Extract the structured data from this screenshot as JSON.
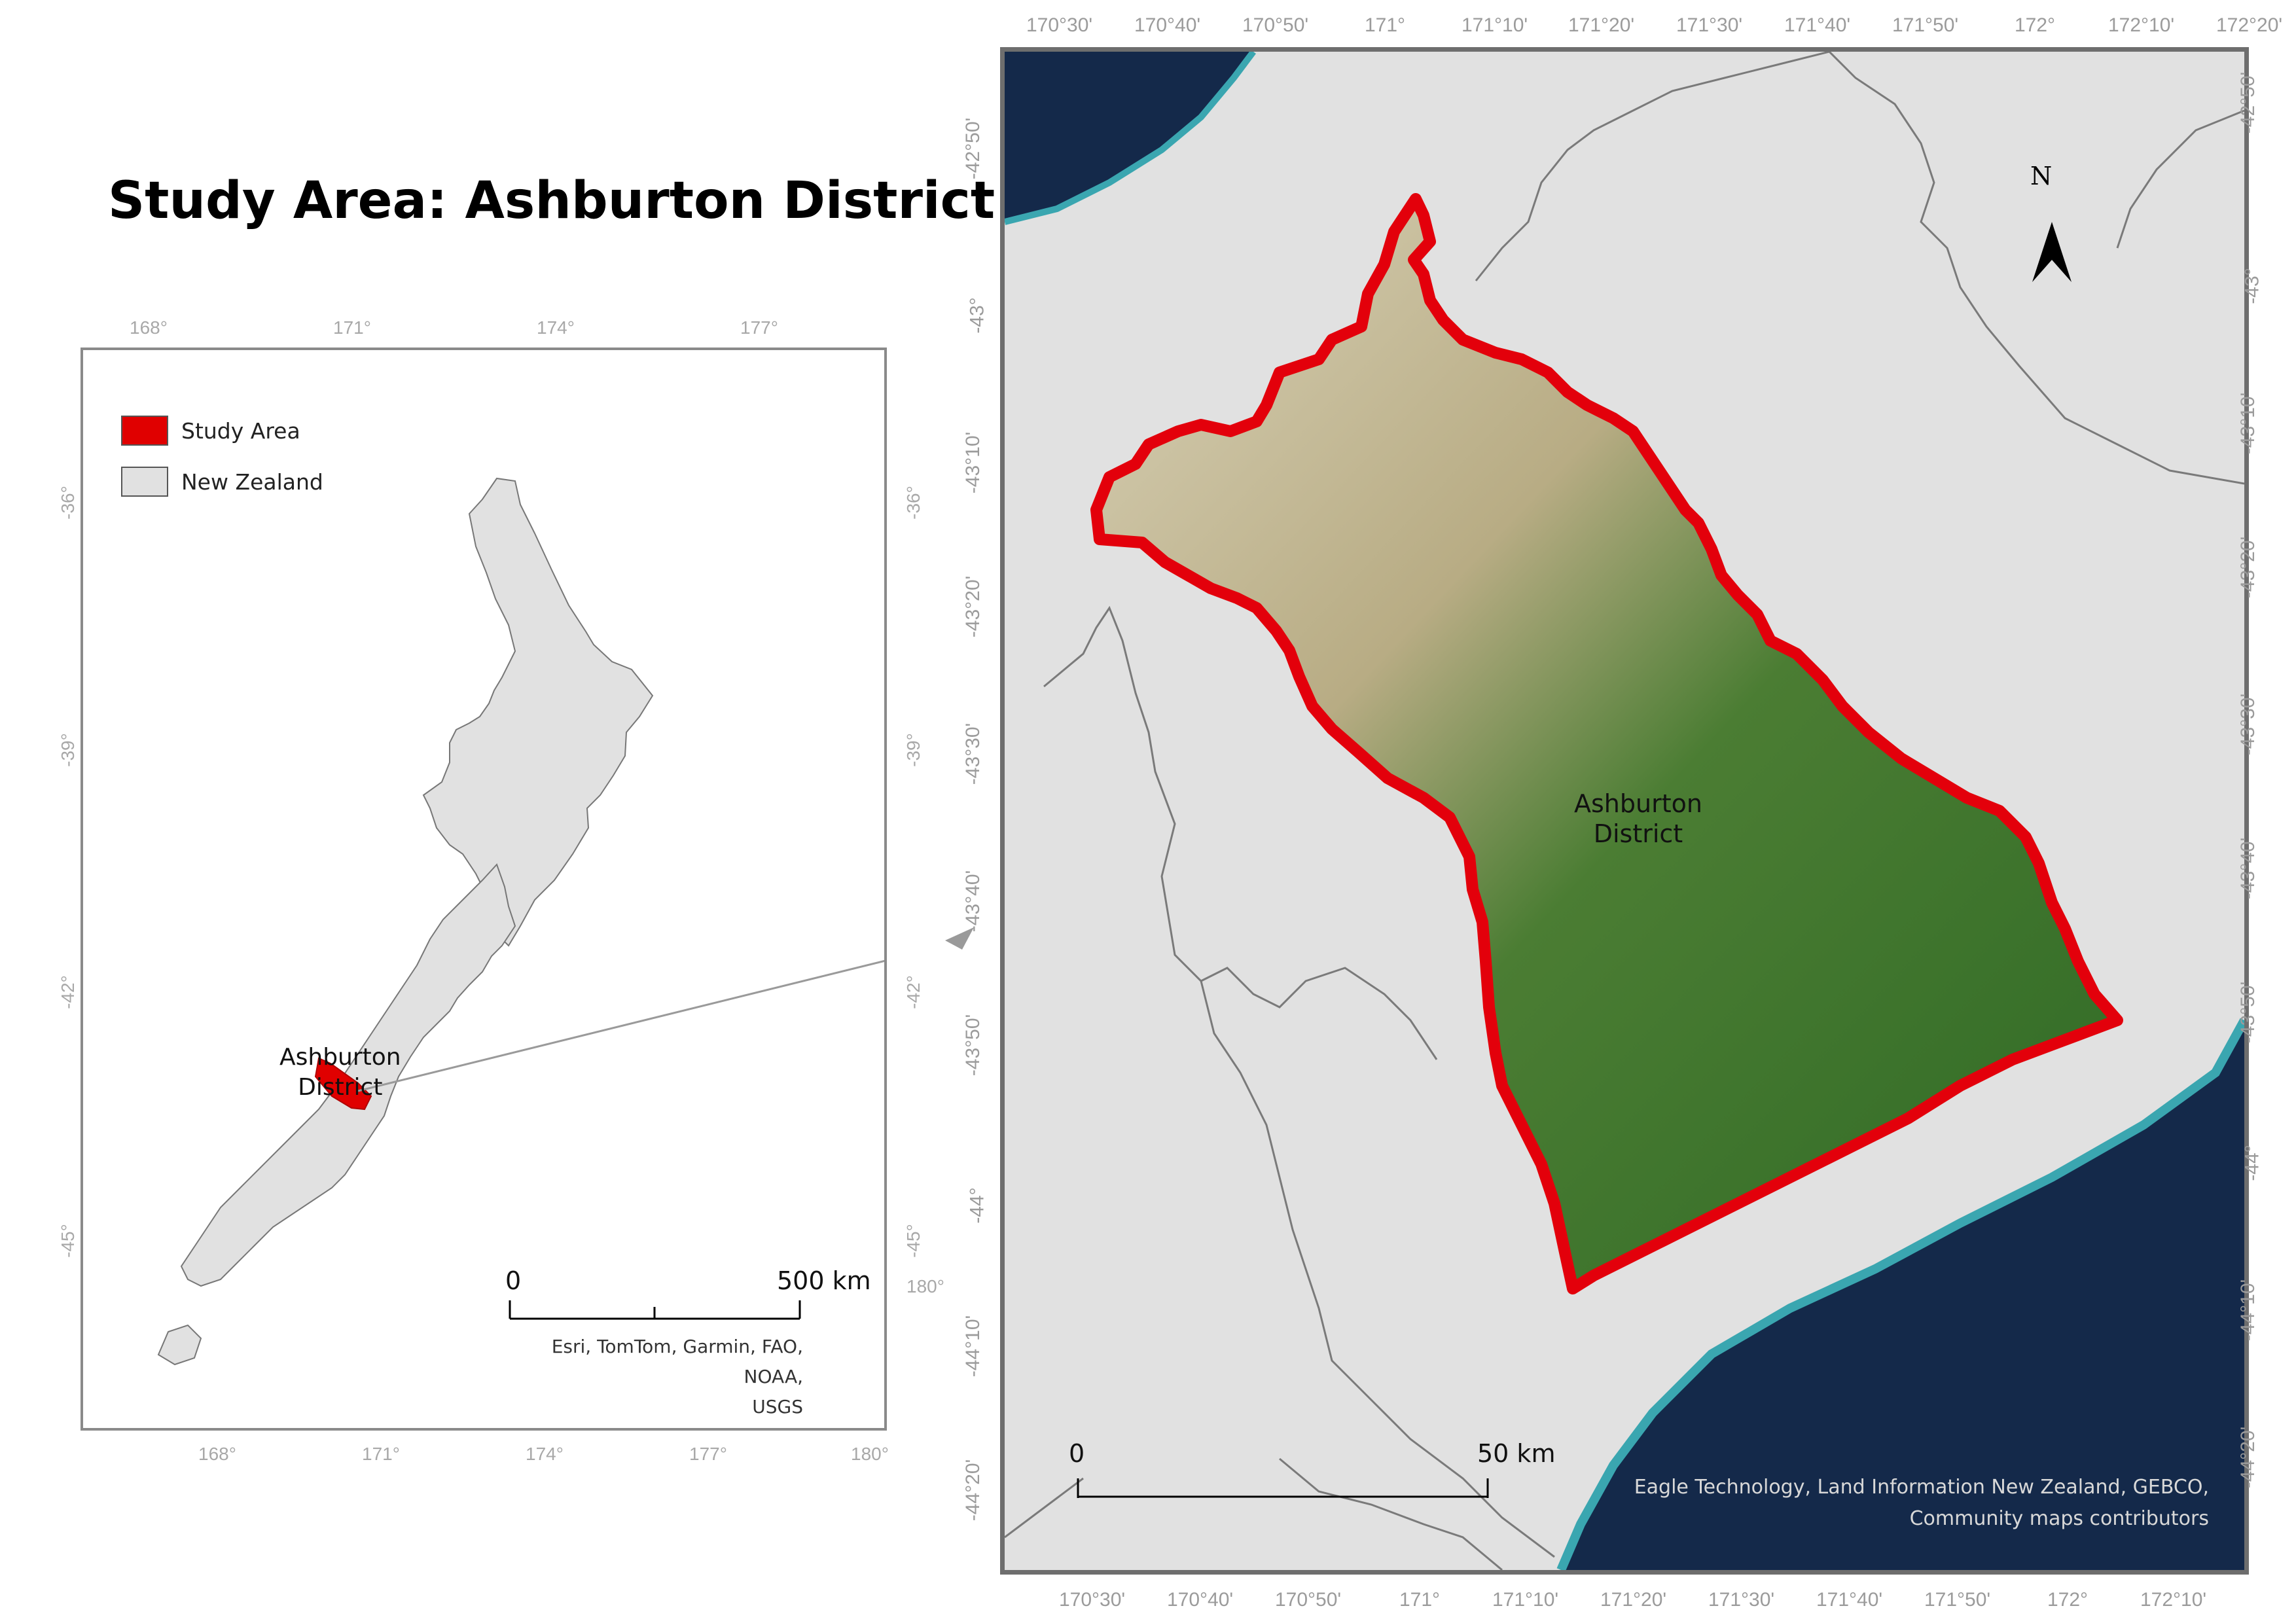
{
  "title": "Study Area: Ashburton District",
  "inset_map": {
    "legend": [
      {
        "label": "Study Area",
        "color": "#e00000"
      },
      {
        "label": "New Zealand",
        "color": "#e1e1e1"
      }
    ],
    "longitude_ticks_top": [
      "168°",
      "171°",
      "174°",
      "177°"
    ],
    "longitude_ticks_bottom": [
      "168°",
      "171°",
      "174°",
      "177°",
      "180°"
    ],
    "latitude_ticks_left": [
      "-36°",
      "-39°",
      "-42°",
      "-45°"
    ],
    "latitude_ticks_right": [
      "-36°",
      "-39°",
      "-42°",
      "-45°",
      "180°"
    ],
    "district_label": "Ashburton\nDistrict",
    "scale_bar": {
      "start": "0",
      "end": "500 km"
    },
    "credit": "Esri, TomTom, Garmin, FAO, NOAA,\nUSGS"
  },
  "main_map": {
    "longitude_ticks": [
      "170°30'",
      "170°40'",
      "170°50'",
      "171°",
      "171°10'",
      "171°20'",
      "171°30'",
      "171°40'",
      "171°50'",
      "172°",
      "172°10'",
      "172°20'"
    ],
    "latitude_ticks_left": [
      "-42°50'",
      "-43°",
      "-43°10'",
      "-43°20'",
      "-43°30'",
      "-43°40'",
      "-43°50'",
      "-44°",
      "-44°10'",
      "-44°20'"
    ],
    "latitude_ticks_right": [
      "-42°50'",
      "-43°",
      "-43°10'",
      "-43°20'",
      "-43°30'",
      "-43°40'",
      "-43°50'",
      "-44°",
      "-44°10'",
      "-44°20'"
    ],
    "district_label": "Ashburton\nDistrict",
    "north_arrow": "N",
    "scale_bar": {
      "start": "0",
      "end": "50 km"
    },
    "credit": "Eagle Technology, Land Information New Zealand, GEBCO,\nCommunity maps contributors",
    "colors": {
      "ocean": "#14294a",
      "land": "#e1e1e1",
      "boundary": "#e3000b",
      "vegetation": "#3f7a2e",
      "mountains": "#c9c0a4"
    }
  }
}
